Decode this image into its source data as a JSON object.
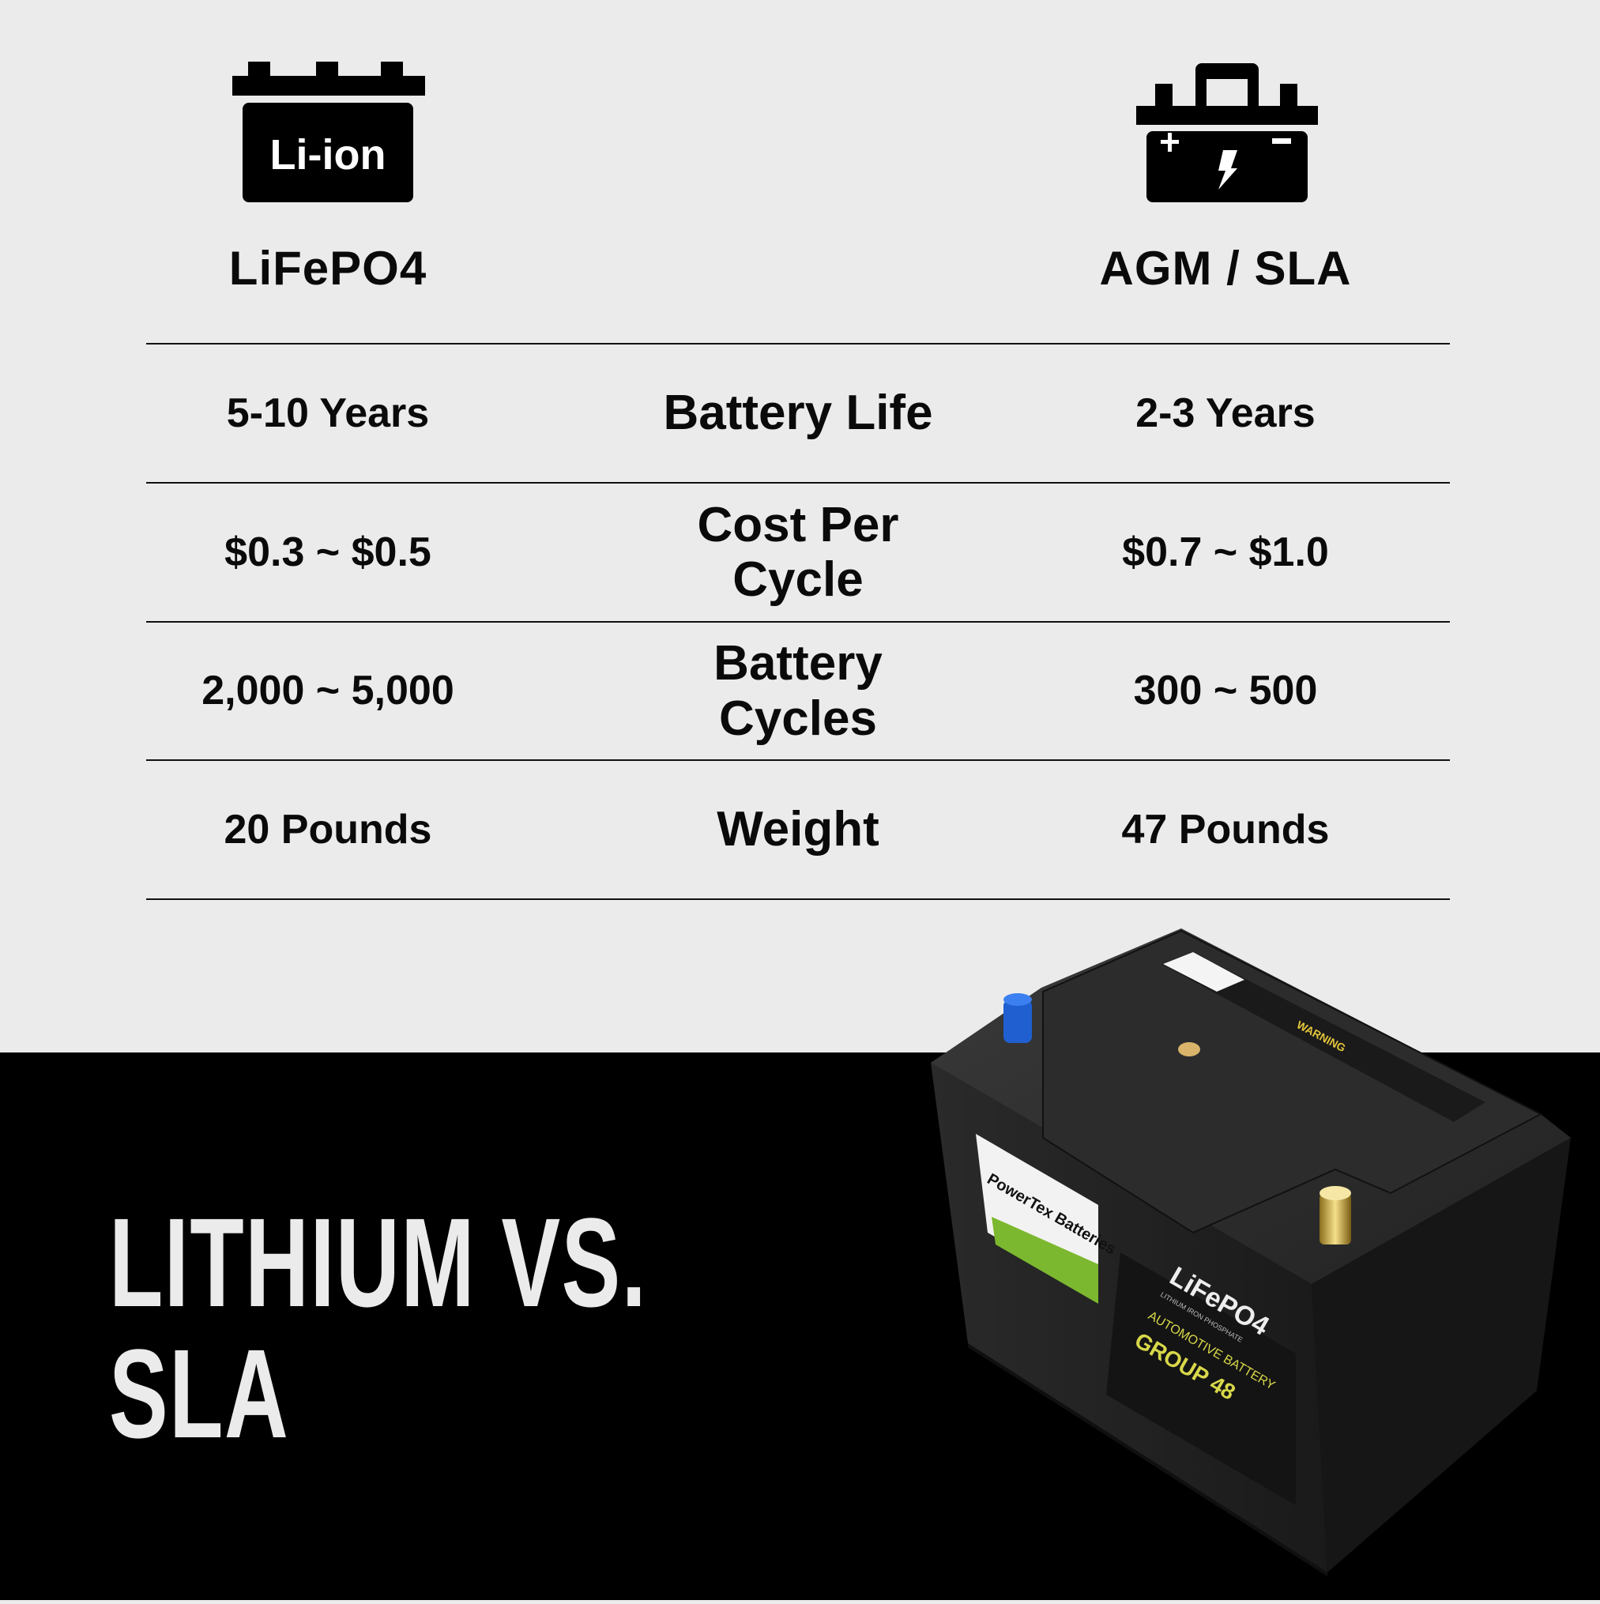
{
  "columns": {
    "left": {
      "title": "LiFePO4",
      "icon": "li-ion-battery-icon",
      "icon_text": "Li-ion"
    },
    "right": {
      "title": "AGM / SLA",
      "icon": "car-battery-icon"
    }
  },
  "rows": [
    {
      "label": "Battery Life",
      "left": "5-10 Years",
      "right": "2-3 Years"
    },
    {
      "label": "Cost Per Cycle",
      "left": "$0.3 ~ $0.5",
      "right": "$0.7 ~ $1.0"
    },
    {
      "label": "Battery Cycles",
      "left": "2,000 ~ 5,000",
      "right": "300 ~ 500"
    },
    {
      "label": "Weight",
      "left": "20 Pounds",
      "right": "47 Pounds"
    }
  ],
  "headline": {
    "line1": "LITHIUM VS.",
    "line2": "SLA"
  },
  "product": {
    "brand": "PowerTex Batteries",
    "chemistry": "LiFePO4",
    "subtitle": "LITHIUM IRON PHOSPHATE",
    "type": "AUTOMOTIVE BATTERY",
    "group": "GROUP 48",
    "warning": "WARNING"
  },
  "colors": {
    "background": "#ebebeb",
    "band": "#000000",
    "accent_green": "#7cb82f",
    "label_yellow": "#d8d84a"
  }
}
